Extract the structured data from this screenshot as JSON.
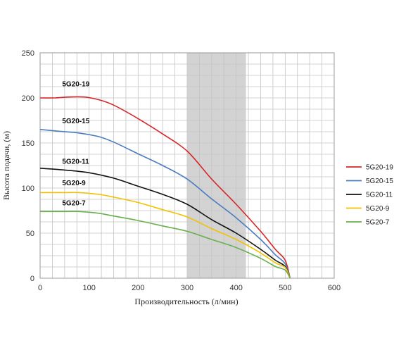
{
  "chart_data": {
    "type": "line",
    "xlabel": "Производительность (л/мин)",
    "ylabel": "Высота подачи, (м)",
    "xlim": [
      0,
      600
    ],
    "ylim": [
      0,
      250
    ],
    "xticks": [
      0,
      100,
      200,
      300,
      400,
      500,
      600
    ],
    "yticks": [
      0,
      50,
      100,
      150,
      200,
      250
    ],
    "grid": true,
    "minor_grid_x_step": 25,
    "minor_grid_y_step": 12.5,
    "legend_position": "right",
    "highlight_band": [
      300,
      420
    ],
    "highlight_color": "#d3d3d3",
    "series": [
      {
        "name": "5G20-19",
        "label": "5G20-19",
        "color": "#d62728",
        "points": [
          [
            0,
            200
          ],
          [
            30,
            200
          ],
          [
            60,
            201
          ],
          [
            90,
            201
          ],
          [
            120,
            198
          ],
          [
            150,
            192
          ],
          [
            200,
            177
          ],
          [
            250,
            160
          ],
          [
            300,
            141
          ],
          [
            350,
            110
          ],
          [
            400,
            82
          ],
          [
            450,
            52
          ],
          [
            480,
            32
          ],
          [
            500,
            20
          ],
          [
            510,
            0
          ]
        ]
      },
      {
        "name": "5G20-15",
        "label": "5G20-15",
        "color": "#4a7cc0",
        "points": [
          [
            0,
            165
          ],
          [
            40,
            163
          ],
          [
            80,
            161
          ],
          [
            120,
            157
          ],
          [
            150,
            151
          ],
          [
            200,
            138
          ],
          [
            250,
            125
          ],
          [
            300,
            110
          ],
          [
            350,
            88
          ],
          [
            400,
            67
          ],
          [
            450,
            43
          ],
          [
            480,
            26
          ],
          [
            500,
            16
          ],
          [
            510,
            0
          ]
        ]
      },
      {
        "name": "5G20-11",
        "label": "5G20-11",
        "color": "#111111",
        "points": [
          [
            0,
            122
          ],
          [
            50,
            120
          ],
          [
            100,
            117
          ],
          [
            150,
            111
          ],
          [
            200,
            102
          ],
          [
            250,
            93
          ],
          [
            300,
            82
          ],
          [
            350,
            65
          ],
          [
            400,
            50
          ],
          [
            450,
            32
          ],
          [
            480,
            20
          ],
          [
            500,
            13
          ],
          [
            510,
            0
          ]
        ]
      },
      {
        "name": "5G20-9",
        "label": "5G20-9",
        "color": "#f2c200",
        "points": [
          [
            0,
            95
          ],
          [
            50,
            95
          ],
          [
            80,
            95
          ],
          [
            120,
            93
          ],
          [
            150,
            90
          ],
          [
            200,
            84
          ],
          [
            250,
            76
          ],
          [
            300,
            68
          ],
          [
            350,
            55
          ],
          [
            400,
            43
          ],
          [
            450,
            28
          ],
          [
            480,
            17
          ],
          [
            500,
            12
          ],
          [
            510,
            0
          ]
        ]
      },
      {
        "name": "5G20-7",
        "label": "5G20-7",
        "color": "#6ab04c",
        "points": [
          [
            0,
            74
          ],
          [
            50,
            74
          ],
          [
            80,
            74
          ],
          [
            120,
            72
          ],
          [
            150,
            69
          ],
          [
            200,
            64
          ],
          [
            250,
            58
          ],
          [
            300,
            52
          ],
          [
            350,
            43
          ],
          [
            400,
            34
          ],
          [
            450,
            22
          ],
          [
            480,
            13
          ],
          [
            500,
            9
          ],
          [
            510,
            0
          ]
        ]
      }
    ],
    "curve_labels": [
      {
        "text": "5G20-19",
        "x": 45,
        "y": 213
      },
      {
        "text": "5G20-15",
        "x": 45,
        "y": 172
      },
      {
        "text": "5G20-11",
        "x": 45,
        "y": 127
      },
      {
        "text": "5G20-9",
        "x": 45,
        "y": 103
      },
      {
        "text": "5G20-7",
        "x": 45,
        "y": 81
      }
    ]
  }
}
